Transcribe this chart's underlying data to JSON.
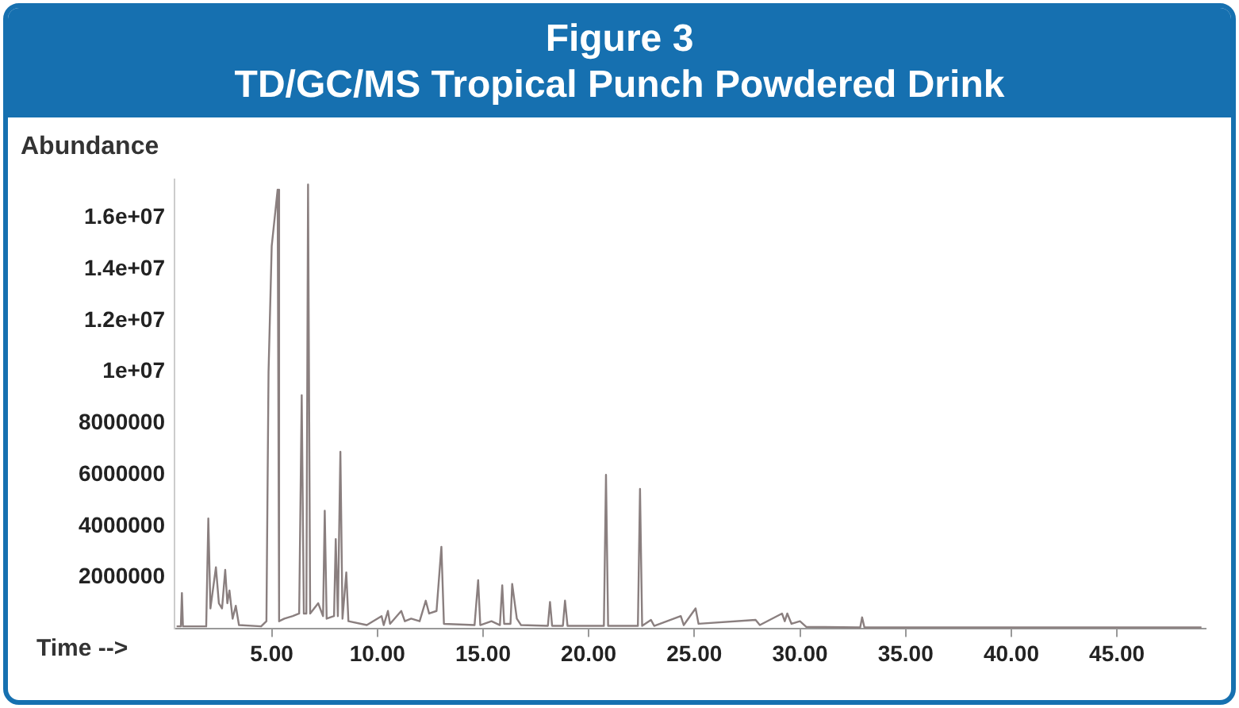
{
  "chart_data": {
    "type": "line",
    "title": "Figure 3",
    "subtitle": "TD/GC/MS Tropical Punch Powdered Drink",
    "xlabel": "Time -->",
    "ylabel": "Abundance",
    "color": "#8a7f7f",
    "grid": false,
    "legend": false,
    "marker": "none",
    "line_style": "solid",
    "xlim": [
      0.4,
      49.2
    ],
    "ylim": [
      0,
      17500000
    ],
    "xticks": [
      {
        "value": 5,
        "label": "5.00"
      },
      {
        "value": 10,
        "label": "10.00"
      },
      {
        "value": 15,
        "label": "15.00"
      },
      {
        "value": 20,
        "label": "20.00"
      },
      {
        "value": 25,
        "label": "25.00"
      },
      {
        "value": 30,
        "label": "30.00"
      },
      {
        "value": 35,
        "label": "35.00"
      },
      {
        "value": 40,
        "label": "40.00"
      },
      {
        "value": 45,
        "label": "45.00"
      }
    ],
    "yticks": [
      2000000,
      4000000,
      6000000,
      8000000,
      {
        "value": 10000000,
        "label": "1e+07"
      },
      {
        "value": 12000000,
        "label": "1.2e+07"
      },
      {
        "value": 14000000,
        "label": "1.4e+07"
      },
      {
        "value": 16000000,
        "label": "1.6e+07"
      }
    ],
    "x": [
      0.5,
      0.7,
      0.75,
      0.8,
      1.9,
      2.0,
      2.1,
      2.36,
      2.5,
      2.65,
      2.8,
      2.9,
      3.0,
      3.15,
      3.3,
      3.45,
      4.5,
      4.75,
      4.85,
      5.0,
      5.28,
      5.35,
      5.6,
      6.0,
      6.3,
      6.42,
      6.52,
      6.64,
      6.72,
      6.82,
      7.2,
      7.43,
      7.51,
      7.6,
      7.95,
      8.03,
      8.13,
      8.25,
      8.35,
      8.53,
      8.63,
      9.5,
      10.2,
      10.3,
      10.5,
      10.6,
      11.13,
      11.3,
      11.6,
      12.0,
      12.29,
      12.45,
      12.8,
      13.03,
      13.15,
      14.6,
      14.77,
      14.87,
      15.4,
      15.8,
      15.91,
      16.0,
      16.3,
      16.38,
      16.6,
      16.8,
      18.07,
      18.17,
      18.27,
      18.78,
      18.88,
      19.0,
      20.72,
      20.82,
      20.92,
      22.33,
      22.43,
      22.53,
      22.95,
      23.1,
      24.36,
      24.5,
      25.06,
      25.2,
      27.9,
      28.1,
      29.15,
      29.28,
      29.4,
      29.6,
      30.0,
      30.3,
      32.85,
      32.94,
      33.05,
      49.0
    ],
    "values": [
      100000,
      100000,
      1400000,
      100000,
      100000,
      4300000,
      800000,
      2400000,
      1000000,
      800000,
      2300000,
      1000000,
      1500000,
      400000,
      900000,
      150000,
      100000,
      300000,
      10000000,
      14900000,
      17100000,
      300000,
      400000,
      500000,
      600000,
      9100000,
      600000,
      600000,
      17300000,
      600000,
      1000000,
      500000,
      4600000,
      400000,
      500000,
      3500000,
      500000,
      6900000,
      400000,
      2200000,
      300000,
      150000,
      500000,
      150000,
      700000,
      200000,
      700000,
      300000,
      400000,
      300000,
      1100000,
      600000,
      700000,
      3200000,
      200000,
      150000,
      1900000,
      150000,
      300000,
      150000,
      1700000,
      200000,
      200000,
      1750000,
      400000,
      150000,
      120000,
      1050000,
      120000,
      120000,
      1100000,
      120000,
      120000,
      6000000,
      120000,
      120000,
      5450000,
      120000,
      350000,
      120000,
      500000,
      150000,
      800000,
      200000,
      350000,
      150000,
      600000,
      300000,
      600000,
      200000,
      300000,
      80000,
      60000,
      450000,
      60000,
      60000
    ]
  }
}
